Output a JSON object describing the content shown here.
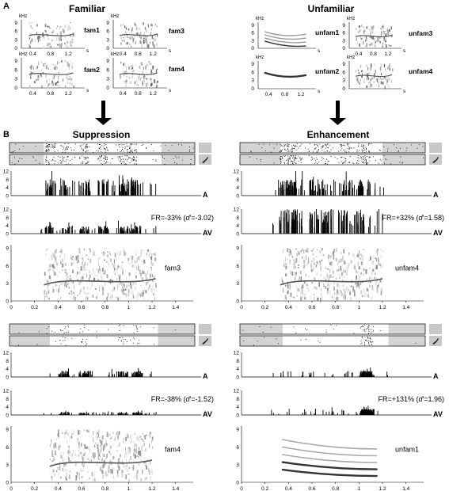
{
  "panel_a": {
    "letter": "A",
    "familiar_title": "Familiar",
    "unfamiliar_title": "Unfamiliar",
    "y_unit": "kHz",
    "x_unit": "s",
    "y_ticks": [
      "9",
      "6",
      "3",
      "0"
    ],
    "x_ticks": [
      "0.4",
      "0.8",
      "1.2"
    ],
    "song_labels": [
      "fam1",
      "fam3",
      "fam2",
      "fam4",
      "unfam1",
      "unfam3",
      "unfam2",
      "unfam4"
    ]
  },
  "panel_b": {
    "letter": "B",
    "left_title": "Suppression",
    "right_title": "Enhancement",
    "hist_ticks": [
      "12",
      "8",
      "4",
      "0"
    ],
    "spec_ticks": [
      "9",
      "6",
      "3",
      "0"
    ],
    "time_ticks": [
      "0",
      "0.2",
      "0.4",
      "0.6",
      "0.8",
      "1",
      "1.2",
      "1.4"
    ],
    "cond_a": "A",
    "cond_av": "AV",
    "blocks": [
      {
        "fr_prefix": "FR=-33% (",
        "d_letter": "d",
        "fr_suffix": "'=-3.02)",
        "song": "fam3"
      },
      {
        "fr_prefix": "FR=+32% (",
        "d_letter": "d",
        "fr_suffix": "'=1.58)",
        "song": "unfam4"
      },
      {
        "fr_prefix": "FR=-38% (",
        "d_letter": "d",
        "fr_suffix": "'=-1.52)",
        "song": "fam4"
      },
      {
        "fr_prefix": "FR=+131% (",
        "d_letter": "d",
        "fr_suffix": "'=1.96)",
        "song": "unfam1"
      }
    ]
  }
}
